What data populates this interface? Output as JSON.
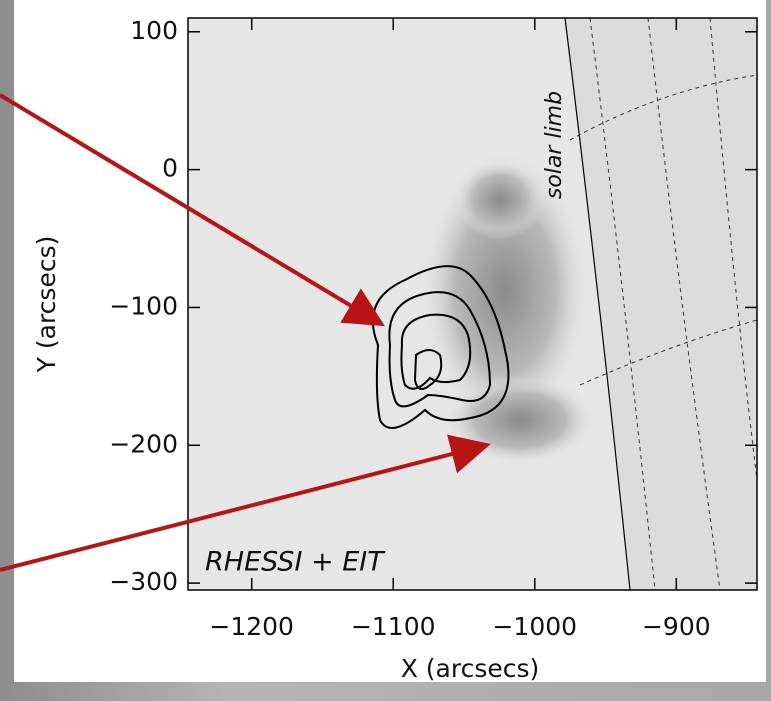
{
  "chart_data": {
    "type": "image",
    "xlabel": "X (arcsecs)",
    "ylabel": "Y (arcsecs)",
    "xlim": [
      -1245,
      -843
    ],
    "ylim": [
      -305,
      110
    ],
    "xticks": [
      {
        "value": -1200,
        "label": "−1200"
      },
      {
        "value": -1100,
        "label": "−1100"
      },
      {
        "value": -1000,
        "label": "−1000"
      },
      {
        "value": -900,
        "label": "−900"
      }
    ],
    "yticks": [
      100,
      0,
      {
        "value": -100,
        "label": "−100"
      },
      {
        "value": -200,
        "label": "−200"
      },
      {
        "value": -300,
        "label": "−300"
      }
    ],
    "annotations": [
      "solar limb",
      "RHESSI + EIT"
    ]
  }
}
